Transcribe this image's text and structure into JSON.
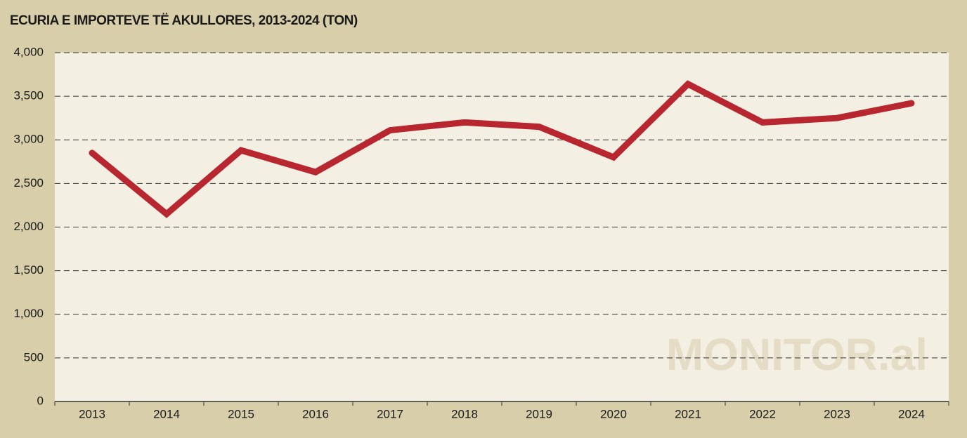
{
  "chart_data": {
    "type": "line",
    "title": "ECURIA E IMPORTEVE TË AKULLORES, 2013-2024 (TON)",
    "watermark": "MONITOR.al",
    "categories": [
      "2013",
      "2014",
      "2015",
      "2016",
      "2017",
      "2018",
      "2019",
      "2020",
      "2021",
      "2022",
      "2023",
      "2024"
    ],
    "values": [
      2850,
      2150,
      2880,
      2630,
      3110,
      3200,
      3150,
      2800,
      3640,
      3200,
      3250,
      3420
    ],
    "color": "#b8272f",
    "ylim": [
      0,
      4000
    ],
    "yticks": [
      0,
      500,
      {
        "value": 1000,
        "label": "1,000"
      },
      {
        "value": 1500,
        "label": "1,500"
      },
      {
        "value": 2000,
        "label": "2,000"
      },
      {
        "value": 2500,
        "label": "2,500"
      },
      {
        "value": 3000,
        "label": "3,000"
      },
      {
        "value": 3500,
        "label": "3,500"
      },
      {
        "value": 4000,
        "label": "4,000"
      }
    ],
    "grid": true
  }
}
